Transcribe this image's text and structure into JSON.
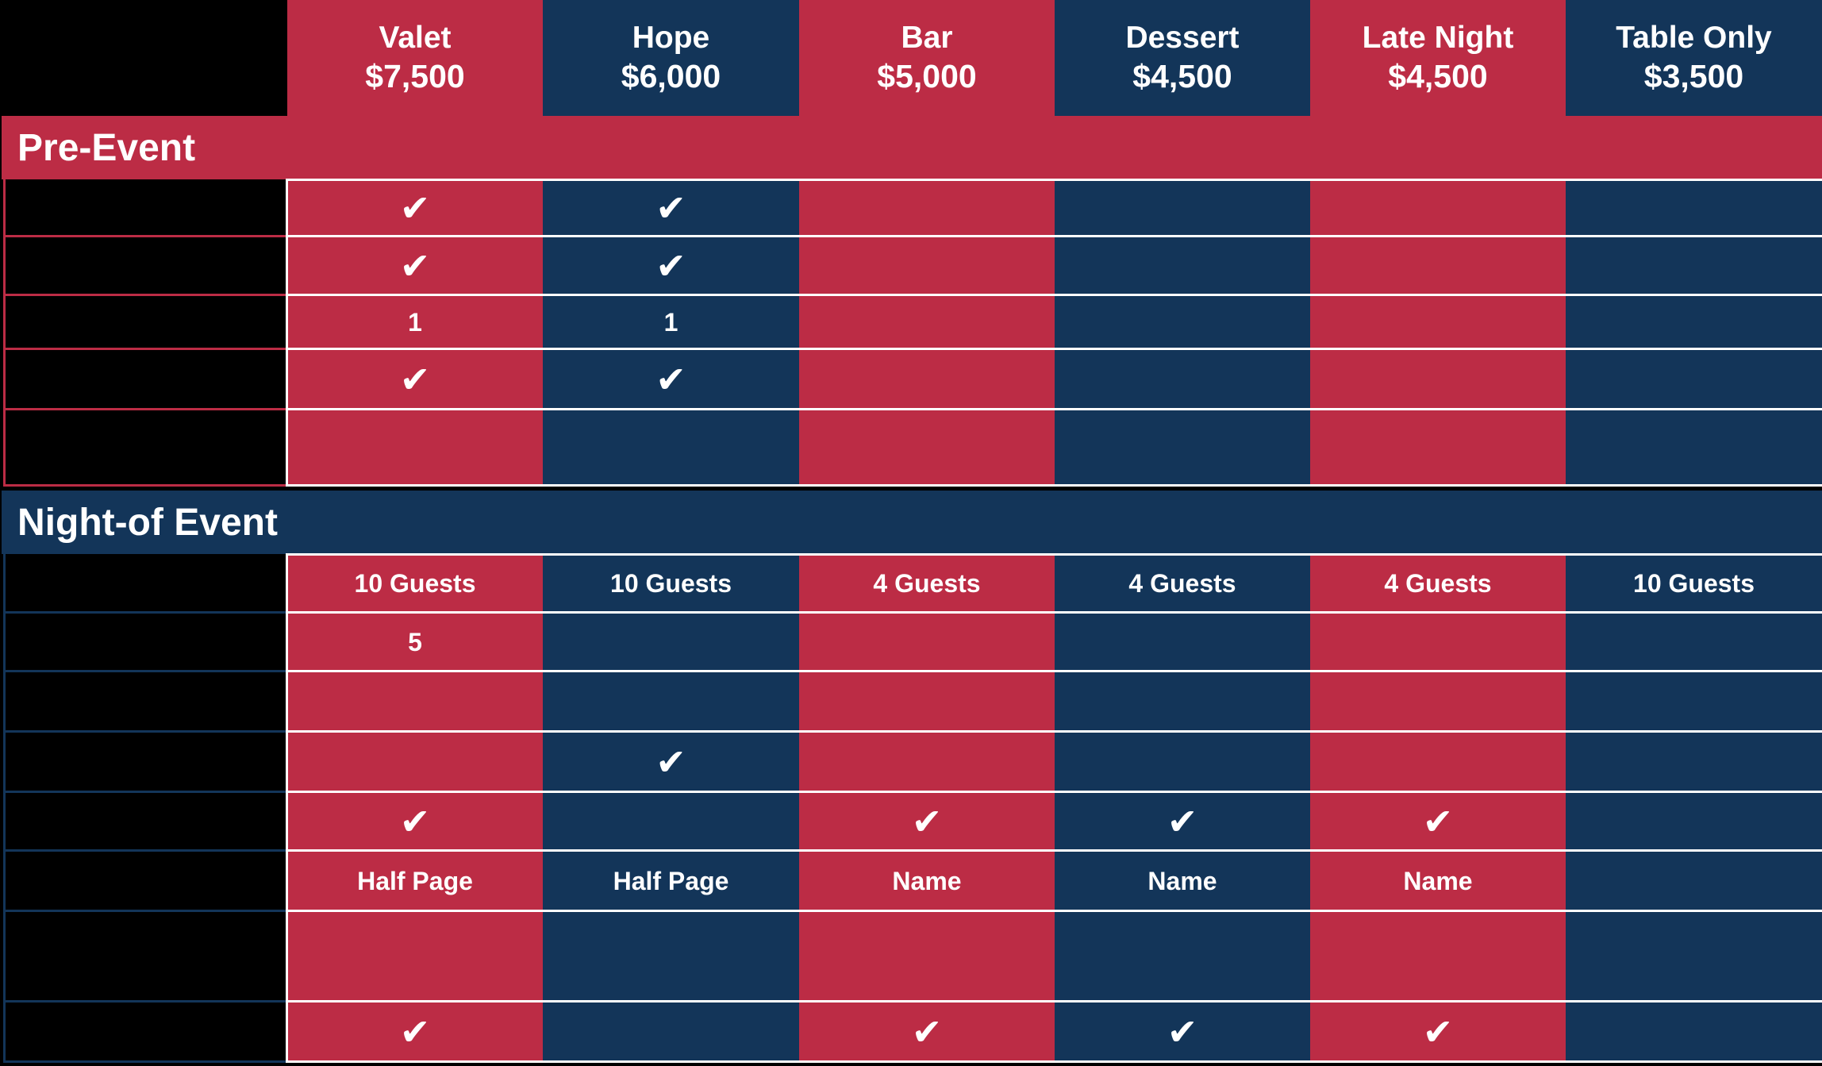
{
  "colors": {
    "red": "#bc2c45",
    "blue": "#133559",
    "background": "#000000",
    "text": "#ffffff"
  },
  "tiers": [
    {
      "name": "Valet",
      "price": "$7,500",
      "color": "red"
    },
    {
      "name": "Hope",
      "price": "$6,000",
      "color": "blue"
    },
    {
      "name": "Bar",
      "price": "$5,000",
      "color": "red"
    },
    {
      "name": "Dessert",
      "price": "$4,500",
      "color": "blue"
    },
    {
      "name": "Late Night",
      "price": "$4,500",
      "color": "red"
    },
    {
      "name": "Table Only",
      "price": "$3,500",
      "color": "blue"
    }
  ],
  "sections": {
    "pre_event": {
      "title": "Pre-Event",
      "rows": [
        [
          "check",
          "check",
          "",
          "",
          "",
          ""
        ],
        [
          "check",
          "check",
          "",
          "",
          "",
          ""
        ],
        [
          "1",
          "1",
          "",
          "",
          "",
          ""
        ],
        [
          "check",
          "check",
          "",
          "",
          "",
          ""
        ],
        [
          "",
          "",
          "",
          "",
          "",
          ""
        ]
      ]
    },
    "night_of": {
      "title": "Night-of Event",
      "rows": [
        [
          "10 Guests",
          "10 Guests",
          "4 Guests",
          "4 Guests",
          "4 Guests",
          "10 Guests"
        ],
        [
          "5",
          "",
          "",
          "",
          "",
          ""
        ],
        [
          "",
          "",
          "",
          "",
          "",
          ""
        ],
        [
          "",
          "check",
          "",
          "",
          "",
          ""
        ],
        [
          "check",
          "",
          "check",
          "check",
          "check",
          ""
        ],
        [
          "Half Page",
          "Half Page",
          "Name",
          "Name",
          "Name",
          ""
        ],
        [
          "",
          "",
          "",
          "",
          "",
          ""
        ],
        [
          "check",
          "",
          "check",
          "check",
          "check",
          ""
        ]
      ]
    }
  },
  "check_glyph": "✔"
}
